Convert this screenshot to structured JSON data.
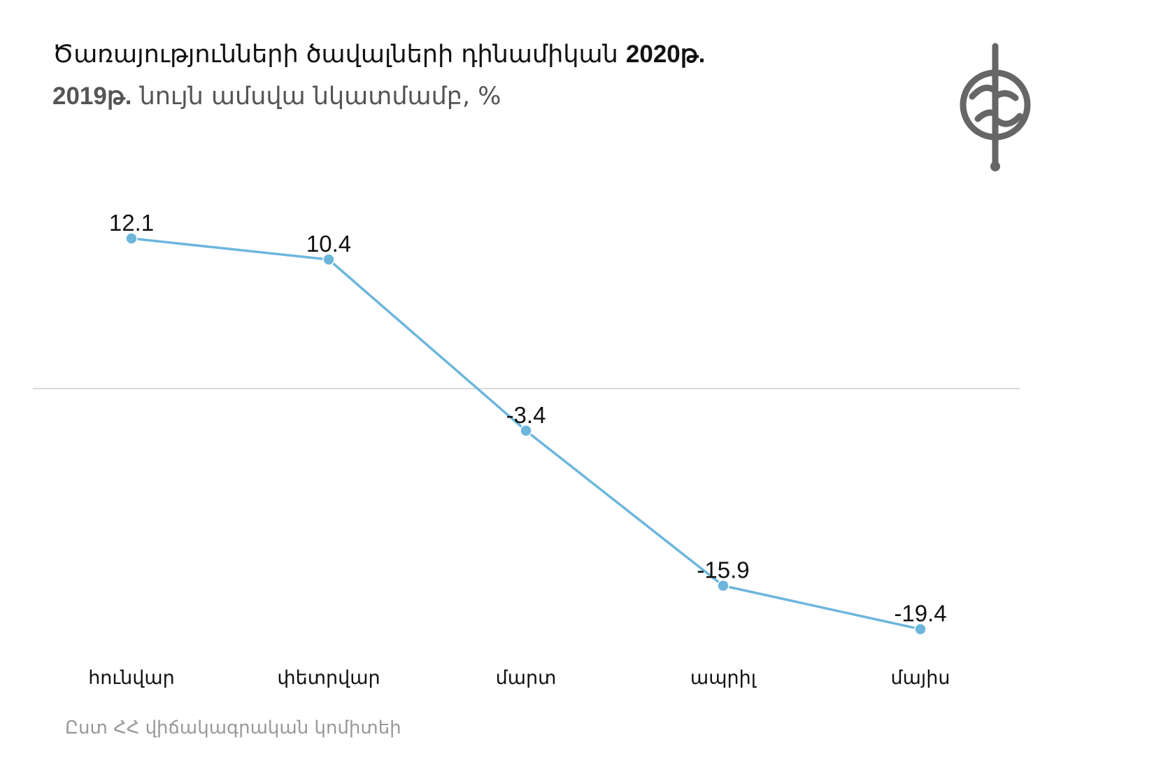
{
  "chart_data": {
    "type": "line",
    "title_parts": {
      "line1_text": "Ծառայությունների ծավալների դինամիկան ",
      "line1_bold": "2020թ.",
      "line2_bold": "2019թ.",
      "line2_text": " նույն ամսվա նկատմամբ, %"
    },
    "categories": [
      "հունվար",
      "փետրվար",
      "մարտ",
      "ապրիլ",
      "մայիս"
    ],
    "values": [
      12.1,
      10.4,
      -3.4,
      -15.9,
      -19.4
    ],
    "data_labels": [
      "12.1",
      "10.4",
      "-3.4",
      "-15.9",
      "-19.4"
    ],
    "ylim": [
      -20.6,
      12.1
    ],
    "zero_line": true,
    "grid": false,
    "legend": "none",
    "line_color": "#6cb6dc",
    "zero_line_color": "#cccccc",
    "source": "Ըստ ՀՀ վիճակագրական կոմիտեի"
  },
  "logo": {
    "name": "globe-logo-icon",
    "color": "#666666"
  }
}
